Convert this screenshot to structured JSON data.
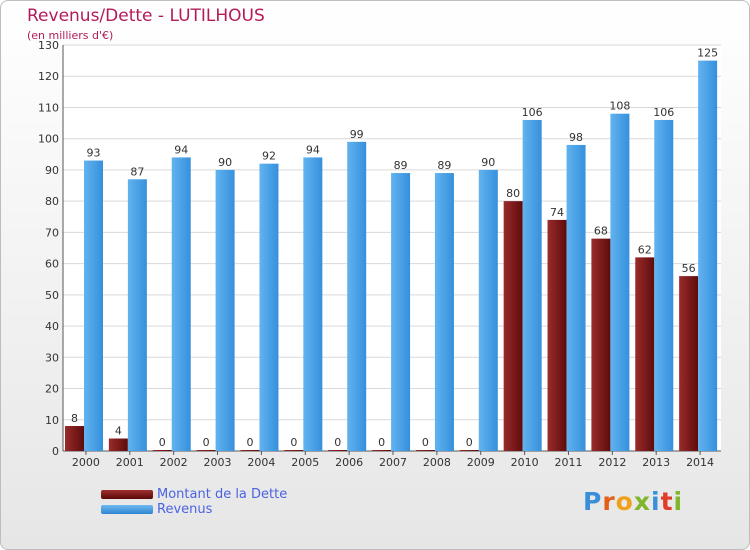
{
  "chart_data": {
    "type": "bar",
    "title": "Revenus/Dette - LUTILHOUS",
    "subtitle": "(en milliers d'€)",
    "categories": [
      "2000",
      "2001",
      "2002",
      "2003",
      "2004",
      "2005",
      "2006",
      "2007",
      "2008",
      "2009",
      "2010",
      "2011",
      "2012",
      "2013",
      "2014"
    ],
    "series": [
      {
        "name": "Montant de la Dette",
        "values": [
          8,
          4,
          0,
          0,
          0,
          0,
          0,
          0,
          0,
          0,
          80,
          74,
          68,
          62,
          56
        ],
        "color": "#7a1a1a"
      },
      {
        "name": "Revenus",
        "values": [
          93,
          87,
          94,
          90,
          92,
          94,
          99,
          89,
          89,
          90,
          106,
          98,
          108,
          106,
          125
        ],
        "color": "#4da3e8"
      }
    ],
    "ylim": [
      0,
      130
    ],
    "yticks": [
      0,
      10,
      20,
      30,
      40,
      50,
      60,
      70,
      80,
      90,
      100,
      110,
      120,
      130
    ],
    "grid": true,
    "legend_position": "bottom-left"
  },
  "logo": {
    "text": "Proxiti"
  },
  "colors": {
    "title": "#b31a5a",
    "legend_text": "#4a63e3",
    "grid": "#d9d9d9",
    "axis": "#555555"
  }
}
